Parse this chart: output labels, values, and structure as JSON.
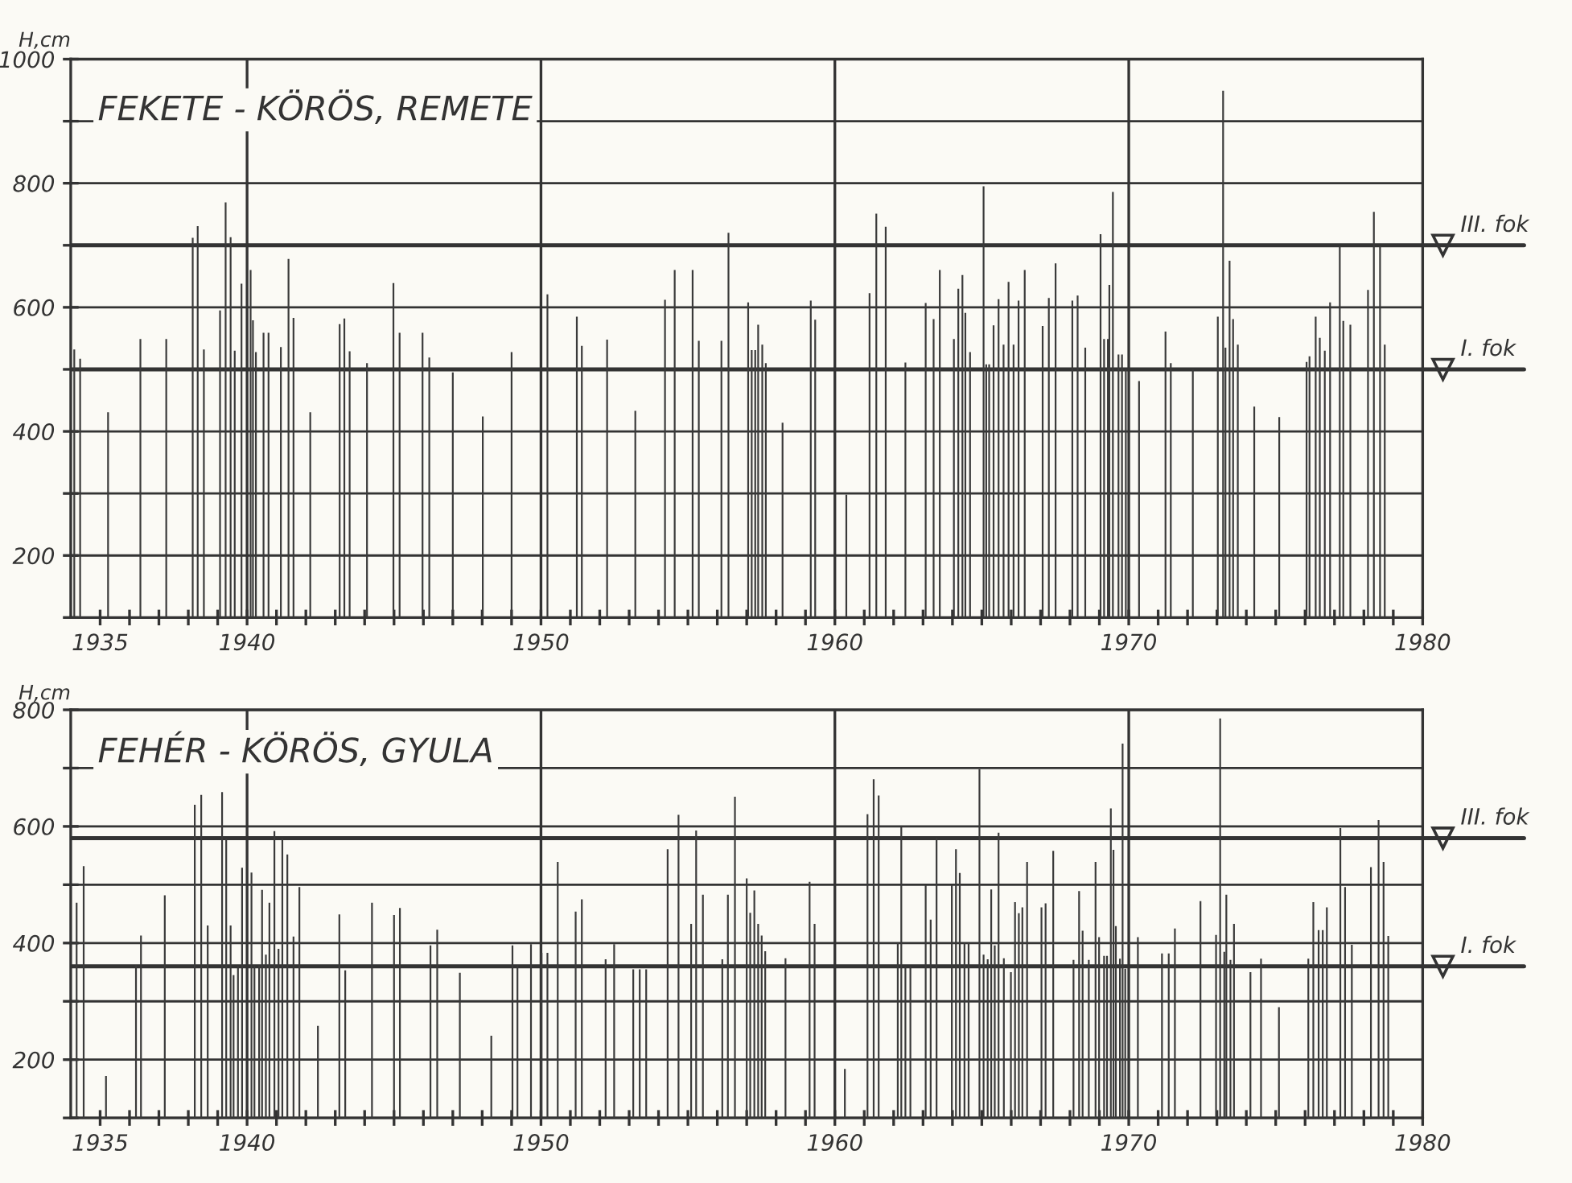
{
  "chart_data": [
    {
      "type": "bar",
      "title": "FEKETE - KÖRÖS, REMETE",
      "ylabel": "H,cm",
      "color": "#3a3a3a",
      "grid": "y",
      "x": [
        1934.12,
        1934.32,
        1935.27,
        1936.37,
        1937.25,
        1938.15,
        1938.32,
        1938.53,
        1939.08,
        1939.27,
        1939.44,
        1939.58,
        1939.81,
        1940.12,
        1940.2,
        1940.3,
        1940.56,
        1940.73,
        1941.15,
        1941.41,
        1941.58,
        1942.15,
        1943.15,
        1943.31,
        1943.49,
        1944.08,
        1944.98,
        1945.19,
        1945.97,
        1946.2,
        1947.0,
        1948.02,
        1949.0,
        1950.22,
        1951.22,
        1951.39,
        1952.25,
        1953.21,
        1954.22,
        1954.55,
        1955.16,
        1955.37,
        1956.14,
        1956.38,
        1957.05,
        1957.17,
        1957.29,
        1957.39,
        1957.53,
        1957.65,
        1958.22,
        1959.18,
        1959.33,
        1960.39,
        1961.18,
        1961.41,
        1961.73,
        1962.4,
        1963.09,
        1963.36,
        1963.57,
        1964.05,
        1964.2,
        1964.34,
        1964.44,
        1964.6,
        1965.06,
        1965.15,
        1965.25,
        1965.4,
        1965.57,
        1965.74,
        1965.91,
        1966.08,
        1966.25,
        1966.46,
        1967.07,
        1967.28,
        1967.51,
        1968.08,
        1968.26,
        1968.52,
        1969.04,
        1969.16,
        1969.29,
        1969.34,
        1969.46,
        1969.65,
        1969.77,
        1969.9,
        1970.35,
        1971.25,
        1971.43,
        1972.18,
        1973.03,
        1973.21,
        1973.29,
        1973.43,
        1973.55,
        1973.71,
        1974.27,
        1975.12,
        1976.05,
        1976.15,
        1976.36,
        1976.5,
        1976.67,
        1976.85,
        1977.18,
        1977.3,
        1977.54,
        1978.14,
        1978.34,
        1978.55,
        1978.71
      ],
      "values": [
        532,
        517,
        431,
        549,
        549,
        712,
        731,
        532,
        595,
        769,
        713,
        530,
        638,
        660,
        579,
        528,
        559,
        559,
        536,
        678,
        583,
        431,
        573,
        582,
        529,
        510,
        639,
        559,
        559,
        519,
        495,
        424,
        528,
        621,
        585,
        538,
        548,
        433,
        612,
        660,
        660,
        546,
        546,
        720,
        608,
        531,
        531,
        572,
        540,
        510,
        414,
        611,
        580,
        298,
        623,
        751,
        730,
        511,
        607,
        581,
        660,
        549,
        630,
        652,
        591,
        528,
        795,
        508,
        508,
        571,
        613,
        540,
        641,
        540,
        611,
        660,
        570,
        615,
        671,
        611,
        619,
        535,
        718,
        549,
        549,
        636,
        786,
        524,
        524,
        500,
        481,
        561,
        510,
        500,
        585,
        949,
        535,
        675,
        581,
        540,
        440,
        423,
        512,
        521,
        585,
        551,
        530,
        608,
        698,
        578,
        572,
        628,
        754,
        698,
        540
      ],
      "xlim": [
        1934,
        1980
      ],
      "xticks": [
        1935,
        {
          "value": 1936,
          "label": null
        },
        {
          "value": 1937,
          "label": null
        },
        {
          "value": 1938,
          "label": null
        },
        {
          "value": 1939,
          "label": null
        },
        1940,
        {
          "value": 1941,
          "label": null
        },
        {
          "value": 1942,
          "label": null
        },
        {
          "value": 1943,
          "label": null
        },
        {
          "value": 1944,
          "label": null
        },
        {
          "value": 1945,
          "label": null
        },
        {
          "value": 1946,
          "label": null
        },
        {
          "value": 1947,
          "label": null
        },
        {
          "value": 1948,
          "label": null
        },
        {
          "value": 1949,
          "label": null
        },
        1950,
        {
          "value": 1951,
          "label": null
        },
        {
          "value": 1952,
          "label": null
        },
        {
          "value": 1953,
          "label": null
        },
        {
          "value": 1954,
          "label": null
        },
        {
          "value": 1955,
          "label": null
        },
        {
          "value": 1956,
          "label": null
        },
        {
          "value": 1957,
          "label": null
        },
        {
          "value": 1958,
          "label": null
        },
        {
          "value": 1959,
          "label": null
        },
        1960,
        {
          "value": 1961,
          "label": null
        },
        {
          "value": 1962,
          "label": null
        },
        {
          "value": 1963,
          "label": null
        },
        {
          "value": 1964,
          "label": null
        },
        {
          "value": 1965,
          "label": null
        },
        {
          "value": 1966,
          "label": null
        },
        {
          "value": 1967,
          "label": null
        },
        {
          "value": 1968,
          "label": null
        },
        {
          "value": 1969,
          "label": null
        },
        1970,
        {
          "value": 1971,
          "label": null
        },
        {
          "value": 1972,
          "label": null
        },
        {
          "value": 1973,
          "label": null
        },
        {
          "value": 1974,
          "label": null
        },
        {
          "value": 1975,
          "label": null
        },
        {
          "value": 1976,
          "label": null
        },
        {
          "value": 1977,
          "label": null
        },
        {
          "value": 1978,
          "label": null
        },
        {
          "value": 1979,
          "label": null
        },
        1980
      ],
      "ylim": [
        100,
        1000
      ],
      "yticks": [
        {
          "value": 100,
          "label": null
        },
        200,
        {
          "value": 300,
          "label": null
        },
        400,
        {
          "value": 500,
          "label": null
        },
        600,
        {
          "value": 700,
          "label": null
        },
        800,
        {
          "value": 900,
          "label": null
        },
        1000
      ],
      "ref_lines": [
        {
          "axis": "x",
          "value": 1940
        },
        {
          "axis": "x",
          "value": 1950
        },
        {
          "axis": "x",
          "value": 1960
        },
        {
          "axis": "x",
          "value": 1970
        },
        {
          "axis": "y",
          "value": 700,
          "label": "III. fok"
        },
        {
          "axis": "y",
          "value": 500,
          "label": "I. fok"
        }
      ]
    },
    {
      "type": "bar",
      "title": "FEHÉR - KÖRÖS, GYULA",
      "ylabel": "H,cm",
      "color": "#3a3a3a",
      "grid": "y",
      "x": [
        1934.2,
        1934.44,
        1935.2,
        1936.22,
        1936.39,
        1937.2,
        1938.22,
        1938.44,
        1938.66,
        1939.15,
        1939.29,
        1939.44,
        1939.54,
        1939.69,
        1939.83,
        1940.15,
        1940.25,
        1940.41,
        1940.51,
        1940.64,
        1940.76,
        1940.93,
        1941.07,
        1941.2,
        1941.37,
        1941.58,
        1941.78,
        1942.41,
        1943.14,
        1943.34,
        1944.25,
        1945.0,
        1945.2,
        1946.24,
        1946.47,
        1947.24,
        1948.31,
        1949.03,
        1949.2,
        1949.66,
        1950.02,
        1950.22,
        1950.57,
        1951.18,
        1951.39,
        1952.2,
        1952.49,
        1953.14,
        1953.36,
        1953.58,
        1954.31,
        1954.68,
        1955.11,
        1955.28,
        1955.51,
        1956.17,
        1956.36,
        1956.6,
        1957.0,
        1957.12,
        1957.26,
        1957.39,
        1957.51,
        1957.63,
        1958.32,
        1959.14,
        1959.31,
        1960.34,
        1961.11,
        1961.32,
        1961.49,
        1962.14,
        1962.26,
        1962.4,
        1962.57,
        1963.09,
        1963.26,
        1963.46,
        1963.98,
        1964.12,
        1964.25,
        1964.41,
        1964.55,
        1964.92,
        1965.06,
        1965.2,
        1965.32,
        1965.44,
        1965.57,
        1965.75,
        1965.99,
        1966.13,
        1966.26,
        1966.38,
        1966.54,
        1967.03,
        1967.17,
        1967.43,
        1968.12,
        1968.31,
        1968.43,
        1968.64,
        1968.87,
        1968.99,
        1969.16,
        1969.26,
        1969.39,
        1969.48,
        1969.56,
        1969.7,
        1969.79,
        1969.88,
        1970.31,
        1971.13,
        1971.36,
        1971.57,
        1972.44,
        1972.97,
        1973.11,
        1973.25,
        1973.32,
        1973.46,
        1973.58,
        1974.14,
        1974.5,
        1975.11,
        1976.11,
        1976.28,
        1976.46,
        1976.6,
        1976.74,
        1977.2,
        1977.36,
        1977.59,
        1978.24,
        1978.5,
        1978.67,
        1978.83
      ],
      "values": [
        469,
        532,
        172,
        362,
        413,
        482,
        637,
        654,
        430,
        659,
        579,
        430,
        345,
        361,
        529,
        521,
        361,
        361,
        491,
        380,
        469,
        592,
        390,
        579,
        552,
        411,
        496,
        258,
        449,
        353,
        469,
        448,
        460,
        396,
        423,
        349,
        241,
        396,
        362,
        398,
        383,
        383,
        539,
        454,
        475,
        372,
        398,
        355,
        355,
        355,
        561,
        620,
        433,
        593,
        483,
        372,
        483,
        651,
        511,
        452,
        490,
        433,
        413,
        386,
        374,
        505,
        433,
        184,
        621,
        681,
        653,
        400,
        599,
        360,
        360,
        499,
        440,
        580,
        499,
        561,
        520,
        400,
        400,
        698,
        380,
        372,
        492,
        396,
        589,
        374,
        350,
        470,
        451,
        461,
        539,
        461,
        468,
        558,
        371,
        489,
        421,
        371,
        539,
        410,
        378,
        378,
        631,
        560,
        429,
        373,
        742,
        356,
        410,
        382,
        382,
        425,
        472,
        414,
        785,
        385,
        483,
        371,
        433,
        350,
        373,
        290,
        373,
        470,
        422,
        422,
        461,
        597,
        496,
        397,
        530,
        611,
        539,
        412
      ],
      "xlim": [
        1934,
        1980
      ],
      "xticks": [
        1935,
        {
          "value": 1936,
          "label": null
        },
        {
          "value": 1937,
          "label": null
        },
        {
          "value": 1938,
          "label": null
        },
        {
          "value": 1939,
          "label": null
        },
        1940,
        {
          "value": 1941,
          "label": null
        },
        {
          "value": 1942,
          "label": null
        },
        {
          "value": 1943,
          "label": null
        },
        {
          "value": 1944,
          "label": null
        },
        {
          "value": 1945,
          "label": null
        },
        {
          "value": 1946,
          "label": null
        },
        {
          "value": 1947,
          "label": null
        },
        {
          "value": 1948,
          "label": null
        },
        {
          "value": 1949,
          "label": null
        },
        1950,
        {
          "value": 1951,
          "label": null
        },
        {
          "value": 1952,
          "label": null
        },
        {
          "value": 1953,
          "label": null
        },
        {
          "value": 1954,
          "label": null
        },
        {
          "value": 1955,
          "label": null
        },
        {
          "value": 1956,
          "label": null
        },
        {
          "value": 1957,
          "label": null
        },
        {
          "value": 1958,
          "label": null
        },
        {
          "value": 1959,
          "label": null
        },
        1960,
        {
          "value": 1961,
          "label": null
        },
        {
          "value": 1962,
          "label": null
        },
        {
          "value": 1963,
          "label": null
        },
        {
          "value": 1964,
          "label": null
        },
        {
          "value": 1965,
          "label": null
        },
        {
          "value": 1966,
          "label": null
        },
        {
          "value": 1967,
          "label": null
        },
        {
          "value": 1968,
          "label": null
        },
        {
          "value": 1969,
          "label": null
        },
        1970,
        {
          "value": 1971,
          "label": null
        },
        {
          "value": 1972,
          "label": null
        },
        {
          "value": 1973,
          "label": null
        },
        {
          "value": 1974,
          "label": null
        },
        {
          "value": 1975,
          "label": null
        },
        {
          "value": 1976,
          "label": null
        },
        {
          "value": 1977,
          "label": null
        },
        {
          "value": 1978,
          "label": null
        },
        {
          "value": 1979,
          "label": null
        },
        1980
      ],
      "ylim": [
        100,
        800
      ],
      "yticks": [
        {
          "value": 100,
          "label": null
        },
        200,
        {
          "value": 300,
          "label": null
        },
        400,
        {
          "value": 500,
          "label": null
        },
        600,
        {
          "value": 700,
          "label": null
        },
        800
      ],
      "ref_lines": [
        {
          "axis": "x",
          "value": 1940
        },
        {
          "axis": "x",
          "value": 1950
        },
        {
          "axis": "x",
          "value": 1960
        },
        {
          "axis": "x",
          "value": 1970
        },
        {
          "axis": "y",
          "value": 580,
          "label": "III. fok"
        },
        {
          "axis": "y",
          "value": 360,
          "label": "I. fok"
        }
      ]
    }
  ]
}
